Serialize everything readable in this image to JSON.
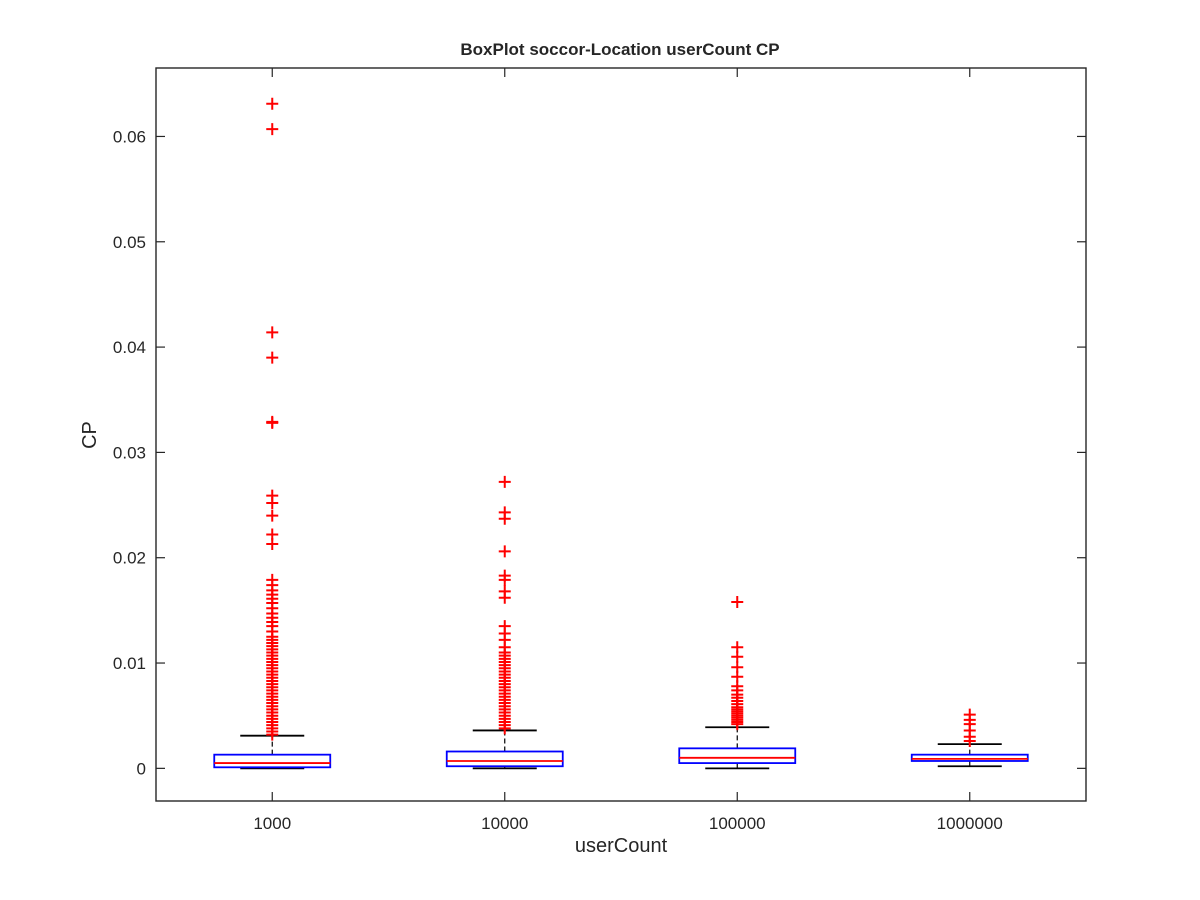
{
  "chart_data": {
    "type": "box",
    "title": "BoxPlot soccor-Location userCount CP",
    "xlabel": "userCount",
    "ylabel": "CP",
    "categories": [
      "1000",
      "10000",
      "100000",
      "1000000"
    ],
    "ylim": [
      -0.0031,
      0.0665
    ],
    "yticks": [
      0,
      0.01,
      0.02,
      0.03,
      0.04,
      0.05,
      0.06
    ],
    "ytick_labels": [
      "0",
      "0.01",
      "0.02",
      "0.03",
      "0.04",
      "0.05",
      "0.06"
    ],
    "grid": false,
    "box_color": "#0000ff",
    "median_color": "#ff0000",
    "whisker_color": "#000000",
    "outlier_color": "#ff0000",
    "boxes": [
      {
        "category": "1000",
        "whisker_low": 0.0,
        "q1": 0.0001,
        "median": 0.0005,
        "q3": 0.0013,
        "whisker_high": 0.0031,
        "outliers": [
          0.0631,
          0.0607,
          0.0414,
          0.039,
          0.0329,
          0.0328,
          0.0259,
          0.0252,
          0.024,
          0.0222,
          0.0213,
          0.0179,
          0.0174,
          0.0169,
          0.0165,
          0.0161,
          0.0157,
          0.0152,
          0.0147,
          0.0143,
          0.0139,
          0.0135,
          0.013,
          0.0125,
          0.0122,
          0.0119,
          0.0116,
          0.0113,
          0.011,
          0.0107,
          0.0104,
          0.0101,
          0.0098,
          0.0095,
          0.0092,
          0.0089,
          0.0086,
          0.0083,
          0.008,
          0.0077,
          0.0074,
          0.0071,
          0.0068,
          0.0065,
          0.0062,
          0.0059,
          0.0056,
          0.0053,
          0.005,
          0.0047,
          0.0044,
          0.0041,
          0.0038,
          0.0035,
          0.0032
        ]
      },
      {
        "category": "10000",
        "whisker_low": 0.0,
        "q1": 0.0002,
        "median": 0.0007,
        "q3": 0.0016,
        "whisker_high": 0.0036,
        "outliers": [
          0.0272,
          0.0243,
          0.0237,
          0.0206,
          0.0183,
          0.0179,
          0.0168,
          0.0162,
          0.0135,
          0.0128,
          0.0122,
          0.0115,
          0.011,
          0.0107,
          0.0104,
          0.0101,
          0.0098,
          0.0095,
          0.0092,
          0.0089,
          0.0086,
          0.0083,
          0.008,
          0.0077,
          0.0074,
          0.0071,
          0.0068,
          0.0065,
          0.0062,
          0.0059,
          0.0056,
          0.0053,
          0.005,
          0.0047,
          0.0044,
          0.0041,
          0.0038
        ]
      },
      {
        "category": "100000",
        "whisker_low": 0.0,
        "q1": 0.0005,
        "median": 0.001,
        "q3": 0.0019,
        "whisker_high": 0.0039,
        "outliers": [
          0.0158,
          0.0115,
          0.0106,
          0.0096,
          0.0087,
          0.0078,
          0.0074,
          0.007,
          0.0067,
          0.0064,
          0.0061,
          0.0058,
          0.0056,
          0.0054,
          0.0052,
          0.005,
          0.0048,
          0.0046,
          0.0044,
          0.0042
        ]
      },
      {
        "category": "1000000",
        "whisker_low": 0.0002,
        "q1": 0.0007,
        "median": 0.0009,
        "q3": 0.0013,
        "whisker_high": 0.0023,
        "outliers": [
          0.0051,
          0.0046,
          0.0042,
          0.0036,
          0.003,
          0.0026
        ]
      }
    ]
  }
}
